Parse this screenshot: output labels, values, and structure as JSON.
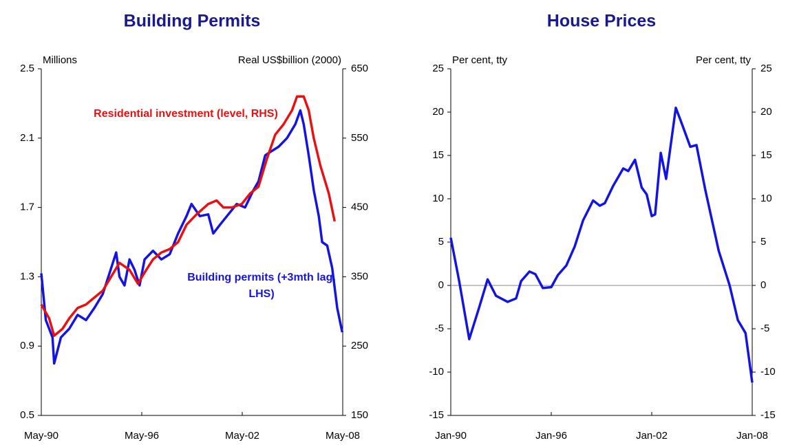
{
  "chart_data": [
    {
      "type": "line",
      "title": "Building Permits",
      "ylabel": "Millions",
      "y2label": "Real US$billion (2000)",
      "xlim": [
        1990.33,
        2008.33
      ],
      "xticks": [
        {
          "value": 1990.33,
          "label": "May-90"
        },
        {
          "value": 1996.33,
          "label": "May-96"
        },
        {
          "value": 2002.33,
          "label": "May-02"
        },
        {
          "value": 2008.33,
          "label": "May-08"
        }
      ],
      "ylim": [
        0.5,
        2.5
      ],
      "yticks": [
        0.5,
        0.9,
        1.3,
        1.7,
        2.1,
        2.5
      ],
      "y2lim": [
        150,
        650
      ],
      "y2ticks": [
        150,
        250,
        350,
        450,
        550,
        650
      ],
      "series": [
        {
          "name": "Building permits (+3mth lag, LHS)",
          "color": "#1414e0",
          "axis": "y",
          "x": [
            1990.33,
            1990.6,
            1991.0,
            1991.1,
            1991.5,
            1992.0,
            1992.5,
            1993.0,
            1993.5,
            1994.0,
            1994.5,
            1994.8,
            1995.0,
            1995.3,
            1995.6,
            1995.9,
            1996.2,
            1996.5,
            1997.0,
            1997.5,
            1998.0,
            1998.5,
            1999.0,
            1999.3,
            1999.8,
            2000.3,
            2000.6,
            2001.0,
            2001.5,
            2002.0,
            2002.5,
            2003.0,
            2003.3,
            2003.7,
            2004.0,
            2004.5,
            2005.0,
            2005.5,
            2005.8,
            2006.0,
            2006.3,
            2006.6,
            2006.9,
            2007.1,
            2007.4,
            2007.7,
            2008.0,
            2008.3
          ],
          "values": [
            1.32,
            1.05,
            0.95,
            0.8,
            0.95,
            1.0,
            1.08,
            1.05,
            1.12,
            1.2,
            1.35,
            1.44,
            1.3,
            1.25,
            1.4,
            1.34,
            1.25,
            1.4,
            1.45,
            1.4,
            1.43,
            1.55,
            1.65,
            1.72,
            1.65,
            1.66,
            1.55,
            1.6,
            1.66,
            1.72,
            1.7,
            1.8,
            1.85,
            2.0,
            2.02,
            2.05,
            2.1,
            2.18,
            2.26,
            2.18,
            2.0,
            1.8,
            1.65,
            1.5,
            1.48,
            1.35,
            1.12,
            0.98
          ]
        },
        {
          "name": "Residential investment (level, RHS)",
          "color": "#e81010",
          "axis": "y2",
          "x": [
            1990.33,
            1990.8,
            1991.1,
            1991.6,
            1992.0,
            1992.5,
            1993.0,
            1993.5,
            1994.0,
            1994.5,
            1995.0,
            1995.6,
            1996.1,
            1996.6,
            1997.0,
            1997.5,
            1998.0,
            1998.5,
            1999.0,
            1999.6,
            2000.3,
            2000.8,
            2001.2,
            2001.7,
            2002.3,
            2002.8,
            2003.3,
            2003.8,
            2004.3,
            2004.8,
            2005.3,
            2005.6,
            2006.0,
            2006.3,
            2006.6,
            2007.0,
            2007.5,
            2007.85
          ],
          "values": [
            310,
            290,
            265,
            275,
            290,
            305,
            310,
            320,
            330,
            350,
            370,
            360,
            340,
            360,
            375,
            385,
            390,
            400,
            425,
            440,
            455,
            460,
            450,
            450,
            455,
            470,
            480,
            520,
            555,
            570,
            590,
            610,
            610,
            590,
            550,
            510,
            470,
            430
          ]
        }
      ]
    },
    {
      "type": "line",
      "title": "House Prices",
      "ylabel": "Per cent, tty",
      "y2label": "Per cent, tty",
      "xlim": [
        1990,
        2008
      ],
      "xticks": [
        {
          "value": 1990,
          "label": "Jan-90"
        },
        {
          "value": 1996,
          "label": "Jan-96"
        },
        {
          "value": 2002,
          "label": "Jan-02"
        },
        {
          "value": 2008,
          "label": "Jan-08"
        }
      ],
      "ylim": [
        -15,
        25
      ],
      "yticks": [
        -15,
        -10,
        -5,
        0,
        5,
        10,
        15,
        20,
        25
      ],
      "y2lim": [
        -15,
        25
      ],
      "y2ticks": [
        -15,
        -10,
        -5,
        0,
        5,
        10,
        15,
        20,
        25
      ],
      "reference_line": 0,
      "series": [
        {
          "color": "#1414e0",
          "axis": "y",
          "x": [
            1990.0,
            1990.5,
            1991.1,
            1991.7,
            1992.2,
            1992.7,
            1993.4,
            1993.9,
            1994.2,
            1994.7,
            1995.05,
            1995.5,
            1996.0,
            1996.4,
            1996.9,
            1997.4,
            1997.9,
            1998.5,
            1998.9,
            1999.2,
            1999.7,
            2000.3,
            2000.6,
            2001.0,
            2001.4,
            2001.7,
            2002.0,
            2002.2,
            2002.54,
            2002.86,
            2003.44,
            2003.77,
            2004.3,
            2004.67,
            2005.2,
            2006.0,
            2006.65,
            2007.14,
            2007.6,
            2008.0
          ],
          "values": [
            5.5,
            0.5,
            -6.2,
            -2.5,
            0.7,
            -1.2,
            -1.9,
            -1.5,
            0.5,
            1.6,
            1.3,
            -0.3,
            -0.2,
            1.2,
            2.3,
            4.5,
            7.5,
            9.8,
            9.2,
            9.5,
            11.5,
            13.5,
            13.2,
            14.5,
            11.3,
            10.5,
            8.0,
            8.2,
            15.3,
            12.3,
            20.5,
            18.8,
            16.0,
            16.2,
            11.0,
            4.0,
            0.0,
            -4.0,
            -5.5,
            -11.2
          ]
        }
      ]
    }
  ]
}
